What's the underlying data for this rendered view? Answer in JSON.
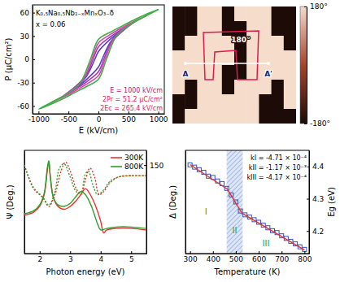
{
  "chart_data": [
    {
      "type": "line",
      "x_label": "E (kV/cm)",
      "y_label": "P (μC/cm²)",
      "xlim": [
        -1100,
        1100
      ],
      "xticks": [
        -1000,
        -500,
        0,
        500,
        1000
      ],
      "ylim": [
        -70,
        70
      ],
      "yticks": [
        -60,
        -30,
        0,
        30,
        60
      ],
      "annotations": [
        "K₀.₅Na₀.₅Nb₁₋ₓMnₓO₃₋δ",
        "x = 0.06",
        "E = 1000 kV/cm",
        "2Pr = 51.2 μC/cm²",
        "2Ec = 265.4 kV/cm"
      ],
      "series": [
        {
          "color": "#5b3fc4",
          "x": [
            400,
            200,
            0,
            -60,
            -200,
            -400,
            -200,
            0,
            60,
            200,
            400
          ],
          "values": [
            38,
            26,
            10,
            0,
            -22,
            -38,
            -26,
            -10,
            0,
            22,
            38
          ]
        },
        {
          "color": "#a23cb0",
          "x": [
            600,
            400,
            200,
            0,
            -90,
            -200,
            -400,
            -600,
            -400,
            -200,
            0,
            90,
            200,
            400,
            600
          ],
          "values": [
            48,
            39,
            29,
            16,
            0,
            -20,
            -36,
            -48,
            -39,
            -29,
            -16,
            0,
            20,
            36,
            48
          ]
        },
        {
          "color": "#e040b0",
          "x": [
            800,
            600,
            400,
            200,
            0,
            -110,
            -250,
            -400,
            -600,
            -800,
            -600,
            -400,
            -200,
            0,
            110,
            250,
            400,
            600,
            800
          ],
          "values": [
            56,
            49,
            41,
            32,
            21,
            0,
            -26,
            -38,
            -48,
            -56,
            -49,
            -41,
            -32,
            -21,
            0,
            26,
            38,
            48,
            56
          ]
        },
        {
          "color": "#3cb043",
          "x": [
            1000,
            800,
            600,
            400,
            200,
            0,
            -133,
            -300,
            -500,
            -700,
            -1000,
            -800,
            -600,
            -400,
            -200,
            0,
            133,
            300,
            500,
            700,
            1000
          ],
          "values": [
            64,
            58,
            51,
            43,
            35,
            25.6,
            0,
            -30,
            -43,
            -52,
            -64,
            -58,
            -51,
            -43,
            -35,
            -25.6,
            0,
            30,
            43,
            52,
            64
          ]
        }
      ]
    },
    {
      "type": "heatmap",
      "cells": [
        [
          -180,
          -180,
          180,
          180,
          -180,
          180,
          180,
          180,
          -180,
          -180
        ],
        [
          -180,
          -180,
          180,
          180,
          -180,
          -180,
          180,
          180,
          -180,
          -180
        ],
        [
          -180,
          180,
          180,
          180,
          180,
          -180,
          180,
          180,
          180,
          -180
        ],
        [
          180,
          180,
          180,
          180,
          180,
          -180,
          180,
          180,
          180,
          180
        ],
        [
          180,
          180,
          180,
          180,
          -180,
          -180,
          180,
          180,
          180,
          180
        ],
        [
          180,
          -180,
          180,
          180,
          -180,
          180,
          180,
          180,
          -180,
          180
        ],
        [
          -180,
          -180,
          180,
          180,
          180,
          180,
          180,
          -180,
          -180,
          180
        ],
        [
          -180,
          180,
          180,
          180,
          180,
          180,
          180,
          -180,
          -180,
          -180
        ]
      ],
      "colorbar_range": [
        -180,
        180
      ],
      "colorbar_ticks": [
        {
          "value": 180,
          "label": "180°"
        },
        {
          "value": -180,
          "label": "-180°"
        }
      ],
      "annotations": [
        "180°",
        "A",
        "A'"
      ]
    },
    {
      "type": "line",
      "x_label": "Photon energy (eV)",
      "y_label": "Ψ (Deg.)",
      "y2_label": "Δ (Deg.)",
      "xlim": [
        1.5,
        5.5
      ],
      "xticks": [
        2,
        3,
        4,
        5
      ],
      "ylim": [
        5,
        40
      ],
      "y2lim": [
        0,
        175
      ],
      "y2ticks": [
        150
      ],
      "legend": "upper right",
      "series": [
        {
          "name": "300K",
          "color": "#e8322b",
          "line_style": "solid",
          "x": [
            1.5,
            1.8,
            2.0,
            2.15,
            2.25,
            2.3,
            2.35,
            2.45,
            2.6,
            2.8,
            3.0,
            3.2,
            3.35,
            3.5,
            3.6,
            3.8,
            4.0,
            4.1,
            4.2,
            4.5,
            5.0,
            5.5
          ],
          "values": [
            18,
            19,
            21,
            25,
            33,
            36,
            31,
            24,
            21,
            20,
            21,
            23,
            25,
            27,
            26,
            22,
            16,
            12,
            13,
            13.5,
            13.5,
            13
          ]
        },
        {
          "name": "800K",
          "color": "#2ca02c",
          "line_style": "solid",
          "x": [
            1.5,
            1.8,
            2.0,
            2.15,
            2.25,
            2.3,
            2.35,
            2.45,
            2.6,
            2.8,
            3.0,
            3.2,
            3.35,
            3.5,
            3.7,
            3.9,
            4.0,
            4.2,
            4.5,
            5.0,
            5.5
          ],
          "values": [
            18.5,
            19.5,
            21.5,
            25.5,
            34,
            36.5,
            31,
            24,
            21.5,
            21,
            22,
            24.5,
            26,
            25,
            21,
            15,
            13,
            13.5,
            14,
            14,
            13.5
          ]
        },
        {
          "name": "300K",
          "color": "#e8322b",
          "line_style": "dotted",
          "axis": "y2",
          "x": [
            1.5,
            1.8,
            2.1,
            2.3,
            2.5,
            2.7,
            2.85,
            3.0,
            3.2,
            3.35,
            3.5,
            3.65,
            3.8,
            3.95,
            4.1,
            4.3,
            4.6,
            5.0,
            5.5
          ],
          "values": [
            150,
            110,
            95,
            80,
            100,
            140,
            155,
            140,
            110,
            100,
            125,
            145,
            130,
            100,
            105,
            120,
            130,
            132,
            132
          ]
        },
        {
          "name": "800K",
          "color": "#2ca02c",
          "line_style": "dotted",
          "axis": "y2",
          "x": [
            1.5,
            1.8,
            2.1,
            2.3,
            2.5,
            2.65,
            2.8,
            3.0,
            3.2,
            3.35,
            3.5,
            3.6,
            3.75,
            3.9,
            4.1,
            4.3,
            4.6,
            5.0,
            5.5
          ],
          "values": [
            150,
            112,
            96,
            82,
            105,
            145,
            152,
            130,
            105,
            103,
            135,
            140,
            115,
            100,
            108,
            122,
            130,
            132,
            132
          ]
        }
      ]
    },
    {
      "type": "scatter",
      "x_label": "Temperature (K)",
      "y_label": "Eg (eV)",
      "xlim": [
        280,
        820
      ],
      "xticks": [
        300,
        400,
        500,
        600,
        700,
        800
      ],
      "ylim": [
        4.13,
        4.45
      ],
      "yticks": [
        4.2,
        4.3,
        4.4
      ],
      "marker": "square",
      "color": "#3050c8",
      "x": [
        300,
        320,
        340,
        360,
        380,
        400,
        420,
        440,
        460,
        480,
        500,
        520,
        540,
        560,
        580,
        600,
        620,
        640,
        660,
        680,
        700,
        720,
        740,
        760,
        780,
        800
      ],
      "values": [
        4.405,
        4.398,
        4.39,
        4.382,
        4.37,
        4.366,
        4.355,
        4.347,
        4.332,
        4.312,
        4.29,
        4.262,
        4.25,
        4.243,
        4.235,
        4.227,
        4.218,
        4.21,
        4.201,
        4.195,
        4.185,
        4.177,
        4.168,
        4.16,
        4.151,
        4.143
      ],
      "fits": [
        {
          "color": "#e8322b",
          "x": [
            300,
            460
          ],
          "values": [
            4.406,
            4.331
          ]
        },
        {
          "color": "#e8322b",
          "x": [
            460,
            530
          ],
          "values": [
            4.333,
            4.251
          ]
        },
        {
          "color": "#e8322b",
          "x": [
            530,
            800
          ],
          "values": [
            4.254,
            4.141
          ]
        }
      ],
      "shaded_range": [
        460,
        530
      ],
      "region_labels": [
        "I",
        "II",
        "III"
      ],
      "annotations": [
        "kI = -4.71 × 10⁻⁴",
        "kII = -1.17 × 10⁻³",
        "kIII = -4.17 × 10⁻⁴"
      ]
    }
  ]
}
